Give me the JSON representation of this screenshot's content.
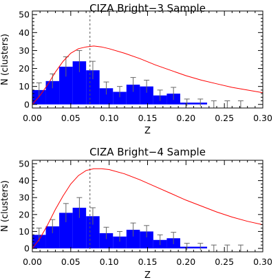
{
  "chart_data": [
    {
      "type": "bar",
      "title": "CIZA Bright−3 Sample",
      "xlabel": "Z",
      "ylabel": "N (clusters)",
      "xlim": [
        0.0,
        0.3
      ],
      "ylim": [
        -2,
        52
      ],
      "xticks": [
        0.0,
        0.05,
        0.1,
        0.15,
        0.2,
        0.25,
        0.3
      ],
      "xtick_labels": [
        "0.00",
        "0.05",
        "0.10",
        "0.15",
        "0.20",
        "0.25",
        "0.30"
      ],
      "yticks": [
        0,
        10,
        20,
        30,
        40,
        50
      ],
      "ytick_labels": [
        "0",
        "10",
        "20",
        "30",
        "40",
        "50"
      ],
      "bin_width": 0.0175,
      "bins": [
        {
          "x": 0.0,
          "value": 8,
          "err": 4
        },
        {
          "x": 0.0175,
          "value": 13,
          "err": 4
        },
        {
          "x": 0.035,
          "value": 21,
          "err": 5.5
        },
        {
          "x": 0.0525,
          "value": 24,
          "err": 6
        },
        {
          "x": 0.07,
          "value": 19,
          "err": 5
        },
        {
          "x": 0.0875,
          "value": 9,
          "err": 3.5
        },
        {
          "x": 0.105,
          "value": 7,
          "err": 3
        },
        {
          "x": 0.1225,
          "value": 11,
          "err": 4
        },
        {
          "x": 0.14,
          "value": 10,
          "err": 3.5
        },
        {
          "x": 0.1575,
          "value": 5,
          "err": 3
        },
        {
          "x": 0.175,
          "value": 6,
          "err": 3.5
        },
        {
          "x": 0.1925,
          "value": 1,
          "err": 2
        },
        {
          "x": 0.21,
          "value": 1,
          "err": 2
        },
        {
          "x": 0.2275,
          "value": 0,
          "err": 2
        },
        {
          "x": 0.245,
          "value": 0,
          "err": 2
        },
        {
          "x": 0.2625,
          "value": 0,
          "err": 2
        }
      ],
      "dashed_line_x": 0.075,
      "curve": {
        "x": [
          0.0,
          0.01,
          0.02,
          0.03,
          0.04,
          0.05,
          0.06,
          0.07,
          0.08,
          0.09,
          0.1,
          0.12,
          0.14,
          0.16,
          0.18,
          0.2,
          0.22,
          0.24,
          0.26,
          0.28,
          0.3
        ],
        "y": [
          0,
          5,
          11,
          18,
          24,
          28.5,
          31,
          32,
          32.5,
          32,
          31,
          28.5,
          25.5,
          22,
          19,
          16,
          13.5,
          11.5,
          9.5,
          8,
          6.5
        ]
      },
      "colors": {
        "bars": "#0000ff",
        "curve": "#ff0000",
        "errorbars": "#666666"
      }
    },
    {
      "type": "bar",
      "title": "CIZA Bright−4 Sample",
      "xlabel": "Z",
      "ylabel": "N (clusters)",
      "xlim": [
        0.0,
        0.3
      ],
      "ylim": [
        -2,
        52
      ],
      "xticks": [
        0.0,
        0.05,
        0.1,
        0.15,
        0.2,
        0.25,
        0.3
      ],
      "xtick_labels": [
        "0.00",
        "0.05",
        "0.10",
        "0.15",
        "0.20",
        "0.25",
        "0.30"
      ],
      "yticks": [
        0,
        10,
        20,
        30,
        40,
        50
      ],
      "ytick_labels": [
        "0",
        "10",
        "20",
        "30",
        "40",
        "50"
      ],
      "bin_width": 0.0175,
      "bins": [
        {
          "x": 0.0,
          "value": 8,
          "err": 4
        },
        {
          "x": 0.0175,
          "value": 13,
          "err": 4
        },
        {
          "x": 0.035,
          "value": 21,
          "err": 5.5
        },
        {
          "x": 0.0525,
          "value": 24,
          "err": 6
        },
        {
          "x": 0.07,
          "value": 19,
          "err": 5
        },
        {
          "x": 0.0875,
          "value": 9,
          "err": 3.5
        },
        {
          "x": 0.105,
          "value": 7,
          "err": 3
        },
        {
          "x": 0.1225,
          "value": 11,
          "err": 4
        },
        {
          "x": 0.14,
          "value": 10,
          "err": 3.5
        },
        {
          "x": 0.1575,
          "value": 5,
          "err": 3
        },
        {
          "x": 0.175,
          "value": 6,
          "err": 3.5
        },
        {
          "x": 0.1925,
          "value": 1,
          "err": 2
        },
        {
          "x": 0.21,
          "value": 1,
          "err": 2
        },
        {
          "x": 0.2275,
          "value": 0,
          "err": 2
        },
        {
          "x": 0.245,
          "value": 0,
          "err": 2
        },
        {
          "x": 0.2625,
          "value": 0,
          "err": 2
        }
      ],
      "dashed_line_x": 0.075,
      "curve": {
        "x": [
          0.0,
          0.01,
          0.02,
          0.03,
          0.04,
          0.05,
          0.06,
          0.07,
          0.08,
          0.09,
          0.1,
          0.12,
          0.14,
          0.16,
          0.18,
          0.2,
          0.22,
          0.24,
          0.26,
          0.28,
          0.3
        ],
        "y": [
          0,
          6,
          14,
          23,
          31,
          38,
          43,
          46,
          47,
          47,
          46.5,
          44,
          40.5,
          36.5,
          32.5,
          28.5,
          25,
          21.5,
          18.5,
          16,
          14
        ]
      },
      "colors": {
        "bars": "#0000ff",
        "curve": "#ff0000",
        "errorbars": "#666666"
      }
    }
  ]
}
